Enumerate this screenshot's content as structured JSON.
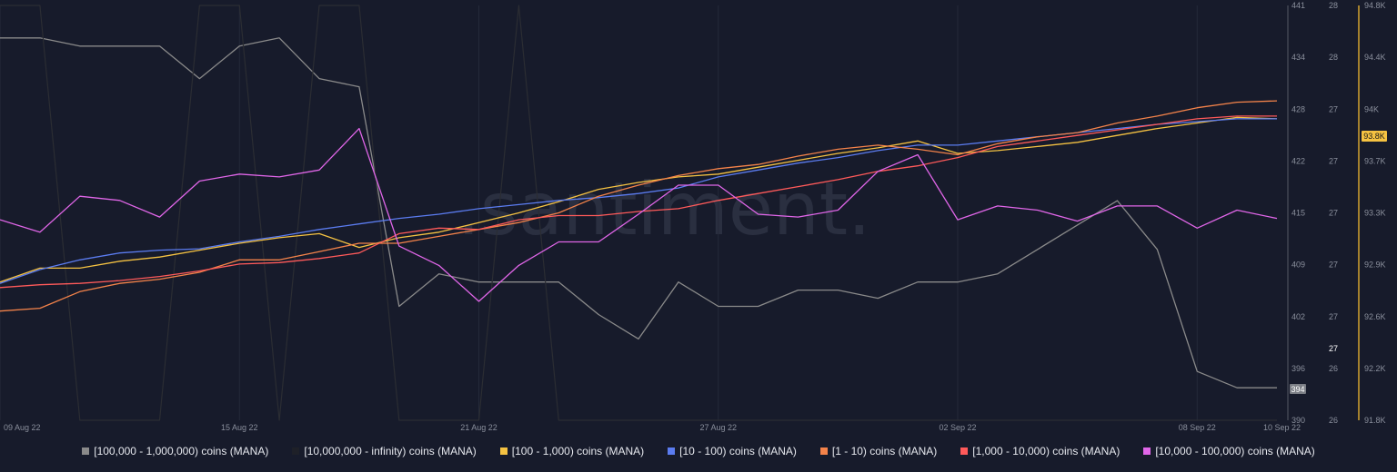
{
  "chart_data": {
    "type": "line",
    "watermark": ".santiment.",
    "x_ticks": [
      "09 Aug 22",
      "15 Aug 22",
      "21 Aug 22",
      "27 Aug 22",
      "02 Sep 22",
      "08 Sep 22",
      "10 Sep 22"
    ],
    "x": [
      "09 Aug 22",
      "10 Aug 22",
      "11 Aug 22",
      "12 Aug 22",
      "13 Aug 22",
      "14 Aug 22",
      "15 Aug 22",
      "16 Aug 22",
      "17 Aug 22",
      "18 Aug 22",
      "19 Aug 22",
      "20 Aug 22",
      "21 Aug 22",
      "22 Aug 22",
      "23 Aug 22",
      "24 Aug 22",
      "25 Aug 22",
      "26 Aug 22",
      "27 Aug 22",
      "28 Aug 22",
      "29 Aug 22",
      "30 Aug 22",
      "31 Aug 22",
      "01 Sep 22",
      "02 Sep 22",
      "03 Sep 22",
      "04 Sep 22",
      "05 Sep 22",
      "06 Sep 22",
      "07 Sep 22",
      "08 Sep 22",
      "09 Sep 22",
      "10 Sep 22"
    ],
    "axes": [
      {
        "id": "a1",
        "ticks": [
          "441",
          "434",
          "428",
          "422",
          "415",
          "409",
          "402",
          "396",
          "390"
        ],
        "ylim": [
          390,
          441
        ],
        "marker": "394"
      },
      {
        "id": "a2",
        "ticks": [
          "28",
          "28",
          "27",
          "27",
          "27",
          "27",
          "27",
          "26",
          "26"
        ],
        "ylim": [
          26,
          28
        ],
        "marker": "27"
      },
      {
        "id": "a3",
        "ticks": [
          "94.8K",
          "94.4K",
          "94K",
          "93.7K",
          "93.3K",
          "92.9K",
          "92.6K",
          "92.2K",
          "91.8K"
        ],
        "ylim": [
          91800,
          94800
        ],
        "marker": "93.8K"
      }
    ],
    "series": [
      {
        "name": "[100,000  - 1,000,000) coins (MANA)",
        "color": "#8a8a8a",
        "axis": "a1",
        "values": [
          437,
          437,
          436,
          436,
          436,
          432,
          436,
          437,
          432,
          431,
          404,
          408,
          407,
          407,
          407,
          403,
          400,
          407,
          404,
          404,
          406,
          406,
          405,
          407,
          407,
          408,
          411,
          414,
          417,
          411,
          396,
          394,
          394
        ]
      },
      {
        "name": "[10,000,000 - infinity) coins (MANA)",
        "color": "#2b2d33",
        "axis": "a2",
        "values": [
          28,
          28,
          26,
          26,
          26,
          28,
          28,
          26,
          28,
          28,
          26,
          26,
          26,
          28,
          26,
          26,
          26,
          26,
          26,
          26,
          26,
          26,
          26,
          26,
          26,
          26,
          26,
          26,
          26,
          26,
          26,
          26,
          26
        ]
      },
      {
        "name": "[100 - 1,000) coins (MANA)",
        "color": "#f5c242",
        "axis": "a3",
        "values": [
          92800,
          92900,
          92900,
          92950,
          92980,
          93030,
          93080,
          93120,
          93150,
          93050,
          93120,
          93160,
          93230,
          93300,
          93380,
          93470,
          93520,
          93560,
          93580,
          93630,
          93680,
          93730,
          93770,
          93820,
          93730,
          93750,
          93780,
          93810,
          93860,
          93910,
          93950,
          93990,
          93980
        ]
      },
      {
        "name": "[10 - 100) coins (MANA)",
        "color": "#5b7cf0",
        "axis": "a3",
        "values": [
          92790,
          92890,
          92960,
          93010,
          93030,
          93040,
          93090,
          93130,
          93180,
          93220,
          93260,
          93290,
          93330,
          93360,
          93390,
          93410,
          93440,
          93480,
          93560,
          93610,
          93660,
          93700,
          93750,
          93790,
          93790,
          93820,
          93850,
          93880,
          93910,
          93940,
          93960,
          93980,
          93980
        ]
      },
      {
        "name": "[1 - 10) coins (MANA)",
        "color": "#f4834a",
        "axis": "a3",
        "values": [
          92590,
          92610,
          92730,
          92790,
          92820,
          92870,
          92960,
          92960,
          93020,
          93080,
          93080,
          93130,
          93180,
          93230,
          93300,
          93420,
          93500,
          93570,
          93620,
          93650,
          93710,
          93760,
          93790,
          93760,
          93720,
          93800,
          93850,
          93880,
          93950,
          94000,
          94060,
          94100,
          94110
        ]
      },
      {
        "name": "[1,000 - 10,000) coins (MANA)",
        "color": "#ff5a5a",
        "axis": "a3",
        "values": [
          92760,
          92780,
          92790,
          92810,
          92840,
          92880,
          92930,
          92940,
          92970,
          93010,
          93150,
          93190,
          93180,
          93250,
          93280,
          93280,
          93310,
          93330,
          93390,
          93440,
          93490,
          93540,
          93600,
          93640,
          93700,
          93780,
          93820,
          93860,
          93900,
          93940,
          93980,
          94000,
          94000
        ]
      },
      {
        "name": "[10,000 - 100,000) coins (MANA)",
        "color": "#e066e8",
        "axis": "a3",
        "values": [
          93250,
          93160,
          93420,
          93390,
          93270,
          93530,
          93580,
          93560,
          93610,
          93910,
          93060,
          92920,
          92660,
          92920,
          93090,
          93090,
          93290,
          93500,
          93500,
          93290,
          93270,
          93320,
          93600,
          93720,
          93250,
          93350,
          93320,
          93240,
          93350,
          93350,
          93190,
          93320,
          93260
        ]
      }
    ]
  }
}
